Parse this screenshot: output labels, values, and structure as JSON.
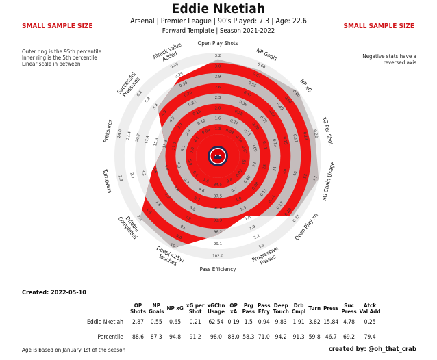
{
  "header": {
    "title": "Eddie Nketiah",
    "subtitle1": "Arsenal  | Premier League | 90's Played: 7.3 | Age: 22.6",
    "subtitle2": "Forward Template | Season 2021-2022",
    "warning_left": "SMALL SAMPLE SIZE",
    "warning_right": "SMALL SAMPLE SIZE"
  },
  "notes": {
    "left": [
      "Outer ring is the 95th percentile",
      "Inner ring is the 5th percentile",
      "Linear scale in between"
    ],
    "right": [
      "Negative stats have a",
      "reversed axis"
    ]
  },
  "colors": {
    "fill_red": "#f01414",
    "fill_gray": "#c4bcbc",
    "ring_light": "#eeeeee",
    "warning": "#d0161b",
    "crest_navy": "#1f2a56",
    "crest_red": "#db0007"
  },
  "chart_data": {
    "type": "radar",
    "title": "Eddie Nketiah",
    "axes": [
      {
        "label": "Open Play Shots",
        "percentile": 88.6,
        "value": 2.87,
        "ticks": [
          "1.3",
          "1.6",
          "2.0",
          "2.3",
          "2.6",
          "2.9",
          "3.0",
          "3.2"
        ]
      },
      {
        "label": "NP Goals",
        "percentile": 87.3,
        "value": 0.55,
        "ticks": [
          "0.08",
          "0.17",
          "0.28",
          "0.39",
          "0.47",
          "0.55",
          "0.61",
          "0.68"
        ]
      },
      {
        "label": "NP xG",
        "percentile": 94.8,
        "value": 0.65,
        "ticks": [
          "0.14",
          "0.21",
          "0.28",
          "0.35",
          "0.42",
          "0.49",
          "0.56",
          "0.60"
        ]
      },
      {
        "label": "xG Per Shot",
        "percentile": 91.2,
        "value": 0.21,
        "ticks": [
          "0.07",
          "0.09",
          "0.11",
          "0.13",
          "0.15",
          "0.17",
          "0.19",
          "0.22"
        ]
      },
      {
        "label": "xG Chain Usage",
        "percentile": 98.0,
        "value": 62.54,
        "ticks": [
          "15",
          "22",
          "28",
          "34",
          "40",
          "46",
          "52",
          "57"
        ]
      },
      {
        "label": "Open Play xA",
        "percentile": 88.0,
        "value": 0.19,
        "ticks": [
          "0.03",
          "0.06",
          "0.08",
          "0.11",
          "0.14",
          "0.17",
          "0.20",
          "0.23"
        ]
      },
      {
        "label": "Progressive Passes",
        "percentile": 58.3,
        "value": 1.5,
        "ticks": [
          "0.4",
          "0.7",
          "1.0",
          "1.3",
          "1.6",
          "1.9",
          "2.2",
          "3.5"
        ]
      },
      {
        "label": "Pass Efficiency",
        "percentile": 71.0,
        "value": 0.94,
        "ticks": [
          "84.5",
          "87.5",
          "90.4",
          "93.3",
          "96.2",
          "99.1",
          "102.0"
        ]
      },
      {
        "label": "Deep(<25y) Touches",
        "percentile": 94.2,
        "value": 9.83,
        "ticks": [
          "3.5",
          "4.6",
          "5.7",
          "6.8",
          "7.9",
          "9.0",
          "9.6",
          "10.1"
        ]
      },
      {
        "label": "Dribble Completed",
        "percentile": 91.3,
        "value": 1.91,
        "ticks": [
          "0.4",
          "0.7",
          "1.0",
          "1.3",
          "1.6",
          "1.9",
          "2.2"
        ]
      },
      {
        "label": "Turnovers",
        "percentile": 59.8,
        "value": 3.82,
        "ticks": [
          "5.8",
          "5.0",
          "4.4",
          "3.6",
          "3.2",
          "2.7",
          "2.3"
        ]
      },
      {
        "label": "Pressures",
        "percentile": 46.7,
        "value": 15.84,
        "ticks": [
          "7.0",
          "9.1",
          "11.2",
          "13.3",
          "15.3",
          "17.4",
          "20.7",
          "22.4",
          "24.0"
        ]
      },
      {
        "label": "Successful Pressures",
        "percentile": 69.2,
        "value": 4.78,
        "ticks": [
          "2.1",
          "2.9",
          "3.7",
          "4.5",
          "4.9",
          "5.4",
          "5.8",
          "6.2"
        ]
      },
      {
        "label": "Attack Value Added",
        "percentile": 79.4,
        "value": 0.25,
        "ticks": [
          "0.09",
          "0.12",
          "0.15",
          "0.22",
          "0.26",
          "0.30",
          "0.35",
          "0.39"
        ]
      }
    ],
    "range": [
      5,
      95
    ],
    "legend_position": "none"
  },
  "table": {
    "created": "Created: 2022-05-10",
    "headers": [
      [
        "OP",
        "Shots"
      ],
      [
        "NP",
        "Goals"
      ],
      [
        "NP xG",
        ""
      ],
      [
        "xG per",
        "Shot"
      ],
      [
        "xGChn",
        "Usage"
      ],
      [
        "OP",
        "xA"
      ],
      [
        "Prg",
        "Pass"
      ],
      [
        "Pass",
        "Efcy"
      ],
      [
        "Deep",
        "Touch"
      ],
      [
        "Drb",
        "Cmpl"
      ],
      [
        "Turn",
        ""
      ],
      [
        "Press",
        ""
      ],
      [
        "Suc",
        "Press"
      ],
      [
        "Atck",
        "Val Add"
      ]
    ],
    "rows": [
      {
        "label": "Eddie Nketiah",
        "values": [
          "2.87",
          "0.55",
          "0.65",
          "0.21",
          "62.54",
          "0.19",
          "1.5",
          "0.94",
          "9.83",
          "1.91",
          "3.82",
          "15.84",
          "4.78",
          "0.25"
        ]
      },
      {
        "label": "Percentile",
        "values": [
          "88.6",
          "87.3",
          "94.8",
          "91.2",
          "98.0",
          "88.0",
          "58.3",
          "71.0",
          "94.2",
          "91.3",
          "59.8",
          "46.7",
          "69.2",
          "79.4"
        ]
      }
    ]
  },
  "footer": {
    "left": "Age is based on January 1st of the season",
    "right": "created by: @oh_that_crab"
  }
}
